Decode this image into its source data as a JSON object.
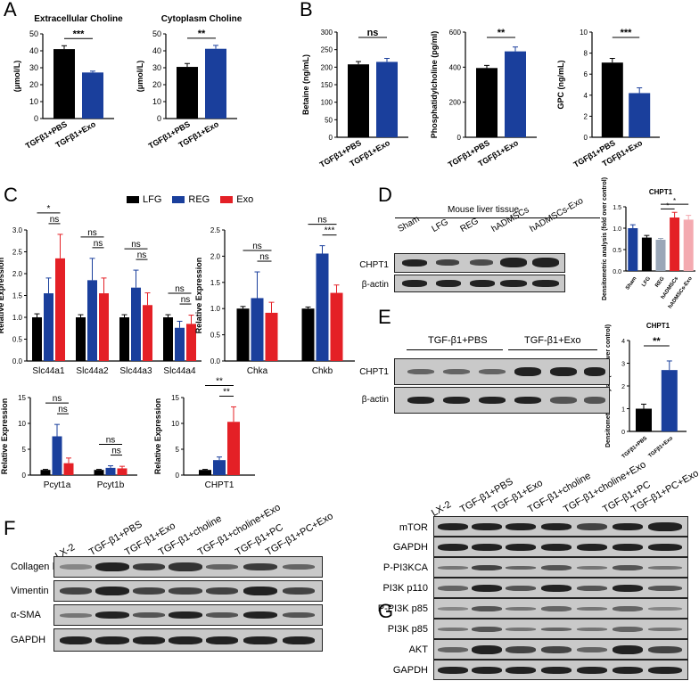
{
  "panels": {
    "A": "A",
    "B": "B",
    "C": "C",
    "D": "D",
    "E": "E",
    "F": "F",
    "G": "G"
  },
  "legend": {
    "items": [
      {
        "label": "LFG",
        "color": "#000000"
      },
      {
        "label": "REG",
        "color": "#1a3f9c"
      },
      {
        "label": "Exo",
        "color": "#e42026"
      }
    ]
  },
  "chart_data": [
    {
      "id": "A1",
      "type": "bar",
      "title": "Extracellular Choline",
      "ylabel": "(μmol/L)",
      "ylim": [
        0,
        50
      ],
      "yticks": [
        0,
        10,
        20,
        30,
        40,
        50
      ],
      "categories": [
        "TGFβ1+PBS",
        "TGFβ1+Exo"
      ],
      "values": [
        41,
        27.2
      ],
      "errors": [
        2,
        0.8
      ],
      "colors": [
        "#000000",
        "#1a3f9c"
      ],
      "sig": [
        "***"
      ]
    },
    {
      "id": "A2",
      "type": "bar",
      "title": "Cytoplasm Choline",
      "ylabel": "(μmol/L)",
      "ylim": [
        0,
        50
      ],
      "yticks": [
        0,
        10,
        20,
        30,
        40,
        50
      ],
      "categories": [
        "TGFβ1+PBS",
        "TGFβ1+Exo"
      ],
      "values": [
        30.5,
        41.2
      ],
      "errors": [
        2,
        2
      ],
      "colors": [
        "#000000",
        "#1a3f9c"
      ],
      "sig": [
        "**"
      ]
    },
    {
      "id": "B1",
      "type": "bar",
      "title": "",
      "ylabel": "Betaine (ng/mL)",
      "ylim": [
        0,
        300
      ],
      "yticks": [
        0,
        50,
        100,
        150,
        200,
        250,
        300
      ],
      "categories": [
        "TGFβ1+PBS",
        "TGFβ1+Exo"
      ],
      "values": [
        208,
        215
      ],
      "errors": [
        8,
        10
      ],
      "colors": [
        "#000000",
        "#1a3f9c"
      ],
      "sig": [
        "ns"
      ]
    },
    {
      "id": "B2",
      "type": "bar",
      "title": "",
      "ylabel": "Phosphatidylcholine (pg/ml)",
      "ylim": [
        0,
        600
      ],
      "yticks": [
        0,
        200,
        400,
        600
      ],
      "categories": [
        "TGFβ1+PBS",
        "TGFβ1+Exo"
      ],
      "values": [
        395,
        490
      ],
      "errors": [
        15,
        25
      ],
      "colors": [
        "#000000",
        "#1a3f9c"
      ],
      "sig": [
        "**"
      ]
    },
    {
      "id": "B3",
      "type": "bar",
      "title": "",
      "ylabel": "GPC (ng/mL)",
      "ylim": [
        0,
        10
      ],
      "yticks": [
        0,
        2,
        4,
        6,
        8,
        10
      ],
      "categories": [
        "TGFβ1+PBS",
        "TGFβ1+Exo"
      ],
      "values": [
        7.1,
        4.2
      ],
      "errors": [
        0.4,
        0.5
      ],
      "colors": [
        "#000000",
        "#1a3f9c"
      ],
      "sig": [
        "***"
      ]
    },
    {
      "id": "C1",
      "type": "bar",
      "title": "",
      "ylabel": "Relative Expression",
      "ylim": [
        0,
        3.0
      ],
      "yticks": [
        0.0,
        0.5,
        1.0,
        1.5,
        2.0,
        2.5,
        3.0
      ],
      "categories": [
        "Slc44a1",
        "Slc44a2",
        "Slc44a3",
        "Slc44a4"
      ],
      "series": [
        {
          "name": "LFG",
          "color": "#000000",
          "values": [
            1.0,
            1.0,
            1.0,
            1.0
          ],
          "errors": [
            0.08,
            0.06,
            0.06,
            0.06
          ]
        },
        {
          "name": "REG",
          "color": "#1a3f9c",
          "values": [
            1.55,
            1.85,
            1.68,
            0.76
          ],
          "errors": [
            0.35,
            0.5,
            0.4,
            0.15
          ]
        },
        {
          "name": "Exo",
          "color": "#e42026",
          "values": [
            2.35,
            1.55,
            1.28,
            0.85
          ],
          "errors": [
            0.55,
            0.35,
            0.28,
            0.2
          ]
        }
      ],
      "sig": [
        "*",
        "ns",
        "ns",
        "ns",
        "ns",
        "ns",
        "ns",
        "ns"
      ]
    },
    {
      "id": "C2",
      "type": "bar",
      "title": "",
      "ylabel": "Relative Expression",
      "ylim": [
        0,
        2.5
      ],
      "yticks": [
        0.0,
        0.5,
        1.0,
        1.5,
        2.0,
        2.5
      ],
      "categories": [
        "Chka",
        "Chkb"
      ],
      "series": [
        {
          "name": "LFG",
          "color": "#000000",
          "values": [
            1.0,
            1.0
          ],
          "errors": [
            0.04,
            0.03
          ]
        },
        {
          "name": "REG",
          "color": "#1a3f9c",
          "values": [
            1.2,
            2.05
          ],
          "errors": [
            0.5,
            0.15
          ]
        },
        {
          "name": "Exo",
          "color": "#e42026",
          "values": [
            0.92,
            1.3
          ],
          "errors": [
            0.2,
            0.15
          ]
        }
      ],
      "sig": [
        "ns",
        "ns",
        "ns",
        "***"
      ]
    },
    {
      "id": "C3",
      "type": "bar",
      "title": "",
      "ylabel": "Relative Expression",
      "ylim": [
        0,
        15
      ],
      "yticks": [
        0,
        5,
        10,
        15
      ],
      "categories": [
        "Pcyt1a",
        "Pcyt1b"
      ],
      "series": [
        {
          "name": "LFG",
          "color": "#000000",
          "values": [
            1.0,
            1.0
          ],
          "errors": [
            0.1,
            0.1
          ]
        },
        {
          "name": "REG",
          "color": "#1a3f9c",
          "values": [
            7.5,
            1.4
          ],
          "errors": [
            2.3,
            0.4
          ]
        },
        {
          "name": "Exo",
          "color": "#e42026",
          "values": [
            2.3,
            1.3
          ],
          "errors": [
            1.0,
            0.4
          ]
        }
      ],
      "sig": [
        "ns",
        "ns",
        "ns",
        "ns"
      ]
    },
    {
      "id": "C4",
      "type": "bar",
      "title": "",
      "ylabel": "Relative Expression",
      "ylim": [
        0,
        15
      ],
      "yticks": [
        0,
        5,
        10,
        15
      ],
      "categories": [
        "CHPT1"
      ],
      "series": [
        {
          "name": "LFG",
          "color": "#000000",
          "values": [
            1.0
          ],
          "errors": [
            0.1
          ]
        },
        {
          "name": "REG",
          "color": "#1a3f9c",
          "values": [
            2.9
          ],
          "errors": [
            0.6
          ]
        },
        {
          "name": "Exo",
          "color": "#e42026",
          "values": [
            10.3
          ],
          "errors": [
            2.9
          ]
        }
      ],
      "sig": [
        "**",
        "**"
      ]
    },
    {
      "id": "D",
      "type": "bar",
      "title": "CHPT1",
      "ylabel": "Densitometric analysis (fold over control)",
      "ylim": [
        0,
        1.5
      ],
      "yticks": [
        0.0,
        0.5,
        1.0,
        1.5
      ],
      "categories": [
        "Sham",
        "LFG",
        "REG",
        "hADMSCs",
        "hADMSCs-Exo"
      ],
      "values": [
        1.0,
        0.78,
        0.73,
        1.25,
        1.2
      ],
      "errors": [
        0.08,
        0.05,
        0.03,
        0.12,
        0.1
      ],
      "colors": [
        "#1a3f9c",
        "#000000",
        "#9aa7b8",
        "#e42026",
        "#f4aab0"
      ],
      "sig": [
        "*",
        "*"
      ]
    },
    {
      "id": "E",
      "type": "bar",
      "title": "CHPT1",
      "ylabel": "Densitometric analysis (fold over control)",
      "ylim": [
        0,
        4
      ],
      "yticks": [
        0,
        1,
        2,
        3,
        4
      ],
      "categories": [
        "TGFβ1+PBS",
        "TGFβ1+Exo"
      ],
      "values": [
        1.0,
        2.7
      ],
      "errors": [
        0.2,
        0.4
      ],
      "colors": [
        "#000000",
        "#1a3f9c"
      ],
      "sig": [
        "**"
      ]
    }
  ],
  "blots": {
    "D": {
      "title": "Mouse liver tissue",
      "lanes": [
        "Sham",
        "LFG",
        "REG",
        "hADMSCs",
        "hADMSCs-Exo"
      ],
      "rows": [
        "CHPT1",
        "β-actin"
      ]
    },
    "E": {
      "groups": [
        "TGF-β1+PBS",
        "TGF-β1+Exo"
      ],
      "rows": [
        "CHPT1",
        "β-actin"
      ]
    },
    "F": {
      "lanes": [
        "LX-2",
        "TGF-β1+PBS",
        "TGF-β1+Exo",
        "TGF-β1+choline",
        "TGF-β1+choline+Exo",
        "TGF-β1+PC",
        "TGF-β1+PC+Exo"
      ],
      "rows": [
        "Collagen Ⅰ",
        "Vimentin",
        "α-SMA",
        "GAPDH"
      ]
    },
    "G": {
      "lanes": [
        "LX-2",
        "TGF-β1+PBS",
        "TGF-β1+Exo",
        "TGF-β1+choline",
        "TGF-β1+choline+Exo",
        "TGF-β1+PC",
        "TGF-β1+PC+Exo"
      ],
      "rows": [
        "mTOR",
        "GAPDH",
        "P-PI3KCA",
        "PI3K p110",
        "P-PI3K p85",
        "PI3K p85",
        "AKT",
        "GAPDH"
      ]
    }
  }
}
